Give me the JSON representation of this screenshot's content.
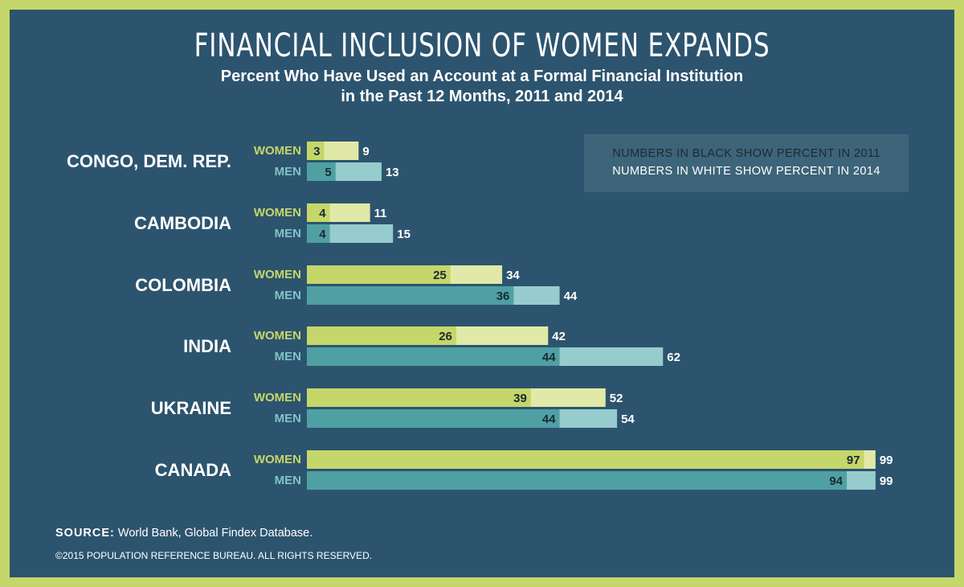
{
  "title": "FINANCIAL INCLUSION OF WOMEN EXPANDS",
  "subtitle_line1": "Percent Who Have Used an Account at a Formal Financial Institution",
  "subtitle_line2": "in the Past 12 Months, 2011 and 2014",
  "note_line1": "NUMBERS IN BLACK SHOW PERCENT IN 2011",
  "note_line2": "NUMBERS IN WHITE SHOW PERCENT IN 2014",
  "source_label": "SOURCE:",
  "source_text": "World Bank, Global Findex Database.",
  "copyright": "©2015 POPULATION REFERENCE BUREAU. ALL RIGHTS RESERVED.",
  "colors": {
    "background": "#2d546e",
    "border": "#c5d66a",
    "women_2011": "#c5d66a",
    "women_2014": "#e1e9a8",
    "men_2011": "#4fa0a3",
    "men_2014": "#96cccd",
    "label_2011": "#1b2a33",
    "label_2014": "#ffffff"
  },
  "chart_data": {
    "type": "bar",
    "orientation": "horizontal",
    "xlim": [
      0,
      100
    ],
    "group_labels": [
      "WOMEN",
      "MEN"
    ],
    "categories": [
      "CONGO, DEM. REP.",
      "CAMBODIA",
      "COLOMBIA",
      "INDIA",
      "UKRAINE",
      "CANADA"
    ],
    "series": [
      {
        "group": "WOMEN",
        "year": "2011",
        "values": [
          3,
          4,
          25,
          26,
          39,
          97
        ]
      },
      {
        "group": "WOMEN",
        "year": "2014",
        "values": [
          9,
          11,
          34,
          42,
          52,
          99
        ]
      },
      {
        "group": "MEN",
        "year": "2011",
        "values": [
          5,
          4,
          36,
          44,
          44,
          94
        ]
      },
      {
        "group": "MEN",
        "year": "2014",
        "values": [
          13,
          15,
          44,
          62,
          54,
          99
        ]
      }
    ]
  }
}
